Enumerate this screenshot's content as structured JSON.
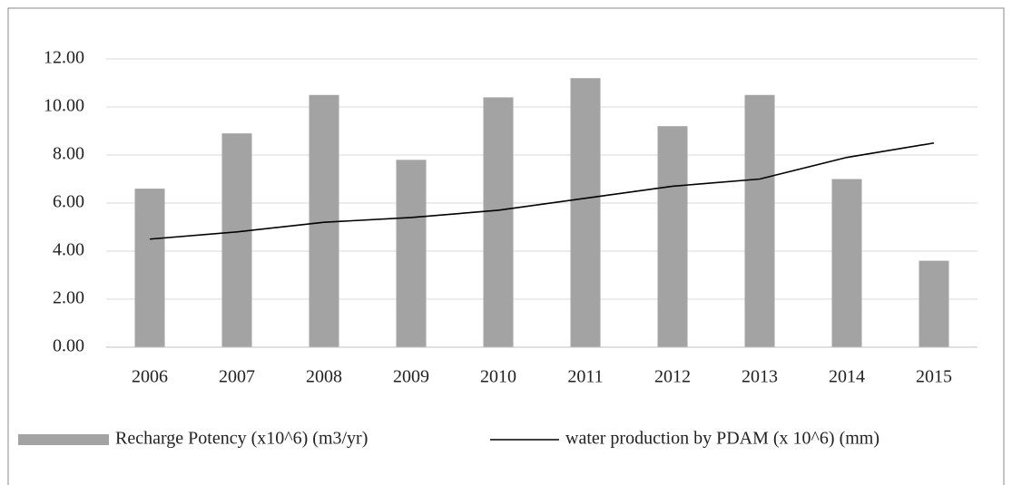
{
  "chart_data": {
    "type": "bar",
    "categories": [
      "2006",
      "2007",
      "2008",
      "2009",
      "2010",
      "2011",
      "2012",
      "2013",
      "2014",
      "2015"
    ],
    "series": [
      {
        "name": "Recharge Potency (x10^6) (m3/yr)",
        "type": "bar",
        "color": "#a3a3a3",
        "values": [
          6.6,
          8.9,
          10.5,
          7.8,
          10.4,
          11.2,
          9.2,
          10.5,
          7.0,
          3.6
        ]
      },
      {
        "name": "water production by PDAM (x 10^6) (mm)",
        "type": "line",
        "color": "#000000",
        "values": [
          4.5,
          4.8,
          5.2,
          5.4,
          5.7,
          6.2,
          6.7,
          7.0,
          7.9,
          8.5
        ]
      }
    ],
    "ylim": [
      0,
      12
    ],
    "yticks": [
      {
        "value": 0,
        "label": "0.00"
      },
      {
        "value": 2,
        "label": "2.00"
      },
      {
        "value": 4,
        "label": "4.00"
      },
      {
        "value": 6,
        "label": "6.00"
      },
      {
        "value": 8,
        "label": "8.00"
      },
      {
        "value": 10,
        "label": "10.00"
      },
      {
        "value": 12,
        "label": "12.00"
      }
    ],
    "grid": true,
    "legend": "bottom"
  }
}
